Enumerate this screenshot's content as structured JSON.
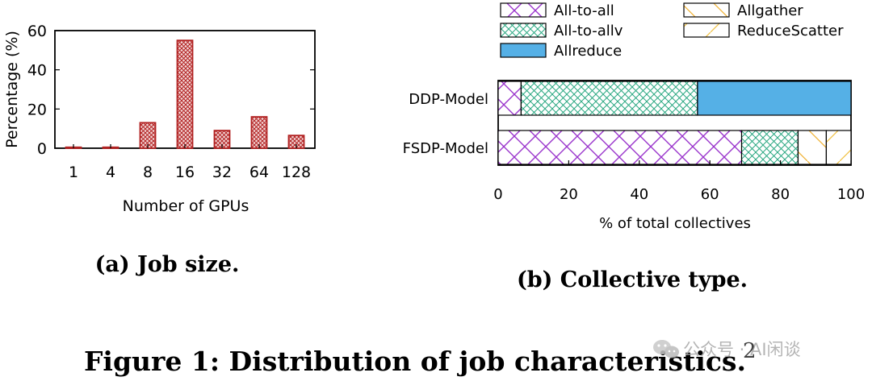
{
  "chart_data": [
    {
      "type": "bar",
      "title": "",
      "categories": [
        "1",
        "4",
        "8",
        "16",
        "32",
        "64",
        "128"
      ],
      "values": [
        0.5,
        0.5,
        13,
        55,
        9,
        16,
        6.5
      ],
      "xlabel": "Number of GPUs",
      "ylabel": "Percentage (%)",
      "ylim": [
        0,
        60
      ],
      "yticks": [
        "0",
        "20",
        "40",
        "60"
      ],
      "bar_color": "#b22222",
      "caption": "(a) Job size."
    },
    {
      "type": "bar",
      "orientation": "horizontal",
      "stacked": true,
      "categories": [
        "DDP-Model",
        "FSDP-Model"
      ],
      "series": [
        {
          "name": "All-to-all",
          "values": [
            6.5,
            69
          ],
          "color": "#9933cc"
        },
        {
          "name": "All-to-allv",
          "values": [
            50,
            16
          ],
          "color": "#2aa882"
        },
        {
          "name": "Allreduce",
          "values": [
            43.5,
            0
          ],
          "color": "#55b0e6"
        },
        {
          "name": "Allgather",
          "values": [
            0,
            8
          ],
          "color": "#f0b030"
        },
        {
          "name": "ReduceScatter",
          "values": [
            0,
            7
          ],
          "color": "#f0c040"
        }
      ],
      "xlabel": "% of total collectives",
      "xlim": [
        0,
        100
      ],
      "xticks": [
        "0",
        "20",
        "40",
        "60",
        "80",
        "100"
      ],
      "legend_position": "top",
      "caption": "(b) Collective type."
    }
  ],
  "figure_caption": "Figure 1: Distribution of job characteristics.",
  "watermark": {
    "page_number": "2",
    "text": "公众号 · AI闲谈"
  }
}
